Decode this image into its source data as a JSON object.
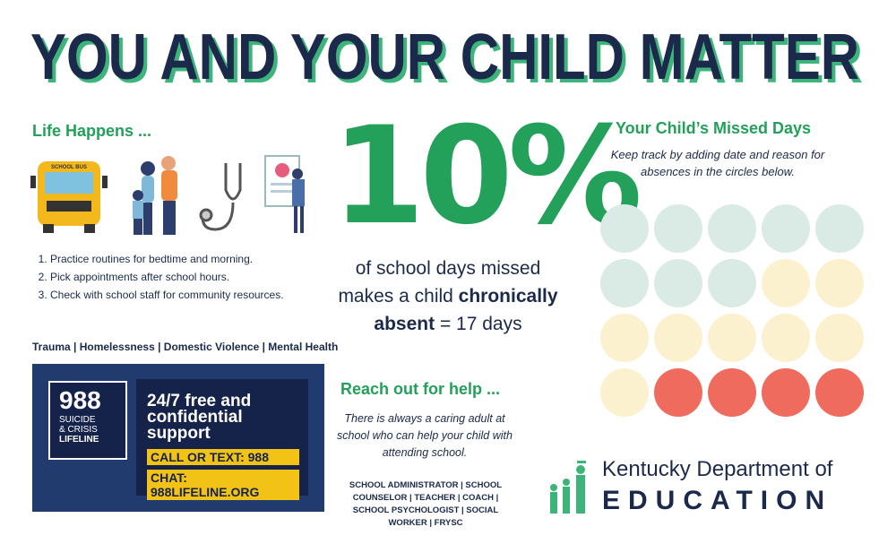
{
  "title": "YOU AND YOUR CHILD MATTER",
  "life_happens": {
    "heading": "Life Happens ...",
    "bus_label": "SCHOOL BUS",
    "tips": [
      "Practice routines for bedtime and morning.",
      "Pick appointments after school hours.",
      "Check with school staff for community resources."
    ],
    "topics": "Trauma | Homelessness | Domestic Violence | Mental Health"
  },
  "lifeline": {
    "number": "988",
    "name_lines": [
      "SUICIDE",
      "& CRISIS",
      "LIFELINE"
    ],
    "support": "24/7 free and confidential support",
    "call": "CALL OR TEXT: 988",
    "chat": "CHAT: 988LIFELINE.ORG"
  },
  "stat": {
    "big": "10%",
    "line1": "of school days missed",
    "line2": "makes a child",
    "line2_bold": "chronically",
    "line3_bold": "absent",
    "line3": "= 17 days"
  },
  "reach_out": {
    "heading": "Reach out for help ...",
    "text": "There is always a caring adult at school who can help your child with attending school.",
    "roles": "SCHOOL ADMINISTRATOR | SCHOOL COUNSELOR | TEACHER | COACH | SCHOOL PSYCHOLOGIST | SOCIAL WORKER | FRYSC"
  },
  "missed_days": {
    "heading": "Your Child’s Missed Days",
    "text": "Keep track by adding date and reason for absences in the circles below."
  },
  "logo": {
    "line1": "Kentucky Department of",
    "line2": "EDUCATION"
  }
}
